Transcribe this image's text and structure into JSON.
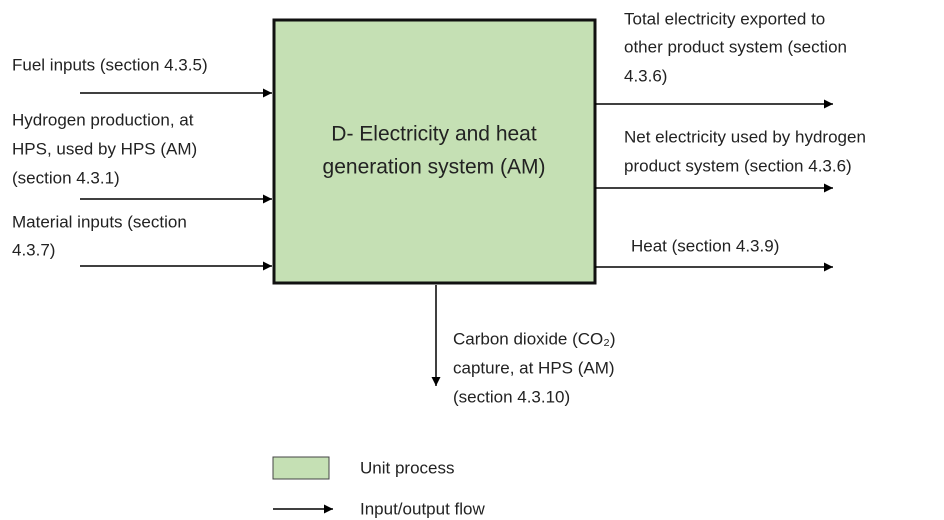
{
  "process": {
    "lines": [
      "D- Electricity and heat",
      "generation system (AM)"
    ]
  },
  "inputs": [
    {
      "lines": [
        "Fuel inputs (section 4.3.5)"
      ]
    },
    {
      "lines": [
        "Hydrogen production, at",
        "HPS, used by HPS (AM)",
        "(section 4.3.1)"
      ]
    },
    {
      "lines": [
        "Material inputs (section",
        "4.3.7)"
      ]
    }
  ],
  "outputs": [
    {
      "lines": [
        "Total electricity exported to",
        "other product system (section",
        "4.3.6)"
      ]
    },
    {
      "lines": [
        "Net electricity used by hydrogen",
        "product system (section 4.3.6)"
      ]
    },
    {
      "lines": [
        "Heat (section 4.3.9)"
      ]
    },
    {
      "lines": [
        "Carbon dioxide (CO₂)",
        "capture, at HPS (AM)",
        "(section 4.3.10)"
      ]
    }
  ],
  "legend": [
    {
      "label": "Unit process"
    },
    {
      "label": "Input/output flow"
    }
  ]
}
